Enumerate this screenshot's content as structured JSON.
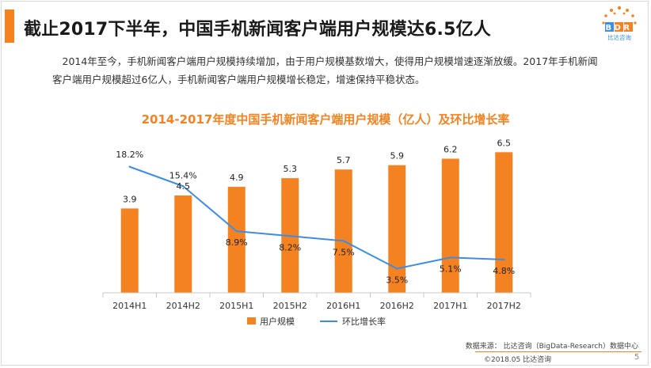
{
  "slide": {
    "title": "截止2017下半年，中国手机新闻客户端用户规模达6.5亿人",
    "intro": "2014年至今，手机新闻客户端用户规模持续增加，由于用户规模基数增大，使得用户规模增速逐渐放缓。2017年手机新闻客户端用户规模超过6亿人，手机新闻客户端用户规模增长稳定，增速保持平稳状态。",
    "logo_text": "BDR",
    "logo_sub": "比达咨询",
    "source": "数据来源：  比达咨询（BigData-Research）数据中心",
    "footer": "©2018.05   比达咨询",
    "page_number": "5"
  },
  "colors": {
    "accent": "#f58220",
    "bar": "#f58220",
    "line": "#3a8ee6",
    "axis": "#c8c8c8"
  },
  "chart_data": {
    "type": "bar",
    "title": "2014-2017年度中国手机新闻客户端用户规模（亿人）及环比增长率",
    "categories": [
      "2014H1",
      "2014H2",
      "2015H1",
      "2015H2",
      "2016H1",
      "2016H2",
      "2017H1",
      "2017H2"
    ],
    "series": [
      {
        "name": "用户规模",
        "kind": "bar",
        "values": [
          3.9,
          4.5,
          4.9,
          5.3,
          5.7,
          5.9,
          6.2,
          6.5
        ],
        "labels": [
          "3.9",
          "4.5",
          "4.9",
          "5.3",
          "5.7",
          "5.9",
          "6.2",
          "6.5"
        ]
      },
      {
        "name": "环比增长率",
        "kind": "line",
        "values": [
          18.2,
          15.4,
          8.9,
          8.2,
          7.5,
          3.5,
          5.1,
          4.8
        ],
        "labels": [
          "18.2%",
          "15.4%",
          "8.9%",
          "8.2%",
          "7.5%",
          "3.5%",
          "5.1%",
          "4.8%"
        ]
      }
    ],
    "y_bar_range": [
      0,
      7.5
    ],
    "y_line_range": [
      0,
      20
    ],
    "legend": [
      "用户规模",
      "环比增长率"
    ],
    "legend_position": "bottom",
    "grid": false
  }
}
